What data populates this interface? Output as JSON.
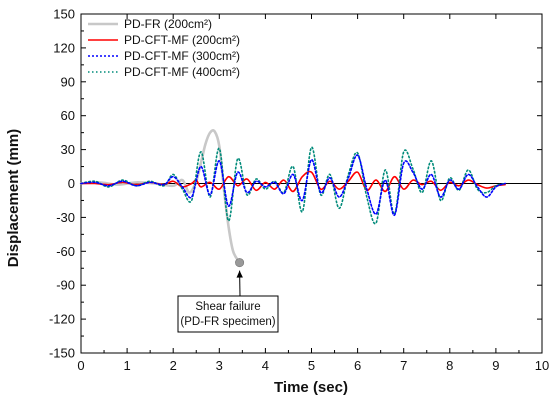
{
  "chart_data": {
    "type": "line",
    "xlabel": "Time (sec)",
    "ylabel": "Displacement (mm)",
    "xlim": [
      0,
      10
    ],
    "ylim": [
      -150,
      150
    ],
    "x_ticks": [
      0,
      1,
      2,
      3,
      4,
      5,
      6,
      7,
      8,
      9,
      10
    ],
    "y_ticks": [
      150,
      120,
      90,
      60,
      30,
      0,
      -30,
      -60,
      -90,
      -120,
      -150
    ],
    "grid": false,
    "legend_position": "top-left",
    "series": [
      {
        "name": "PD-FR (200cm²)",
        "color": "#c8c8c8",
        "style": "solid",
        "x": [
          0,
          0.4,
          0.8,
          1.2,
          1.6,
          2.0,
          2.2,
          2.35,
          2.5,
          2.6,
          2.7,
          2.8,
          2.9,
          3.0,
          3.1,
          3.2,
          3.3,
          3.44
        ],
        "y": [
          0,
          1,
          -1,
          1,
          0,
          -2,
          3,
          -8,
          2,
          18,
          35,
          45,
          46,
          33,
          -5,
          -38,
          -60,
          -70
        ]
      },
      {
        "name": "PD-CFT-MF (200cm²)",
        "color": "#ff0000",
        "style": "solid",
        "x": [
          0,
          0.3,
          0.6,
          0.9,
          1.2,
          1.5,
          1.8,
          2.0,
          2.2,
          2.4,
          2.5,
          2.6,
          2.8,
          3.0,
          3.2,
          3.4,
          3.6,
          3.8,
          4.0,
          4.2,
          4.4,
          4.6,
          4.8,
          5.0,
          5.2,
          5.4,
          5.6,
          5.8,
          6.0,
          6.2,
          6.4,
          6.6,
          6.8,
          7.0,
          7.2,
          7.4,
          7.6,
          7.8,
          8.0,
          8.2,
          8.4,
          8.6,
          8.8,
          9.0,
          9.2
        ],
        "y": [
          0,
          0,
          -1,
          1,
          -1,
          1,
          -1,
          2,
          -3,
          0,
          3,
          -3,
          1,
          -5,
          6,
          -2,
          4,
          -6,
          1,
          -5,
          3,
          -7,
          6,
          10,
          -5,
          2,
          -5,
          2,
          10,
          -6,
          3,
          -7,
          6,
          -5,
          3,
          -1,
          2,
          -6,
          1,
          -2,
          3,
          -1,
          -4,
          -2,
          -1
        ]
      },
      {
        "name": "PD-CFT-MF (300cm²)",
        "color": "#0000ff",
        "style": "dotted",
        "x": [
          0,
          0.3,
          0.6,
          0.9,
          1.2,
          1.5,
          1.8,
          2.0,
          2.2,
          2.4,
          2.6,
          2.8,
          3.0,
          3.2,
          3.4,
          3.6,
          3.8,
          4.0,
          4.2,
          4.4,
          4.6,
          4.8,
          5.0,
          5.2,
          5.4,
          5.6,
          5.8,
          6.0,
          6.2,
          6.4,
          6.6,
          6.8,
          7.0,
          7.2,
          7.4,
          7.6,
          7.8,
          8.0,
          8.2,
          8.4,
          8.6,
          8.8,
          9.0,
          9.2
        ],
        "y": [
          0,
          1,
          -2,
          2,
          -2,
          1,
          -1,
          6,
          -3,
          -12,
          15,
          -10,
          20,
          -20,
          10,
          -8,
          2,
          -3,
          1,
          -9,
          8,
          -15,
          21,
          -8,
          5,
          -12,
          5,
          25,
          -5,
          -27,
          3,
          -28,
          18,
          10,
          -5,
          8,
          -12,
          3,
          -5,
          8,
          -3,
          -12,
          -3,
          0
        ]
      },
      {
        "name": "PD-CFT-MF (400cm²)",
        "color": "#008b7a",
        "style": "dotted",
        "x": [
          0,
          0.3,
          0.6,
          0.9,
          1.2,
          1.5,
          1.8,
          2.0,
          2.2,
          2.4,
          2.6,
          2.8,
          3.0,
          3.2,
          3.4,
          3.6,
          3.8,
          4.0,
          4.2,
          4.4,
          4.6,
          4.8,
          5.0,
          5.2,
          5.4,
          5.6,
          5.8,
          6.0,
          6.2,
          6.4,
          6.6,
          6.8,
          7.0,
          7.2,
          7.4,
          7.6,
          7.8,
          8.0,
          8.2,
          8.4,
          8.6,
          8.8,
          9.0,
          9.2
        ],
        "y": [
          0,
          2,
          -3,
          3,
          -2,
          2,
          -2,
          8,
          -5,
          -15,
          28,
          -12,
          31,
          -33,
          22,
          -10,
          4,
          -5,
          2,
          -8,
          15,
          -25,
          32,
          -10,
          8,
          -22,
          8,
          27,
          -12,
          -35,
          12,
          -27,
          28,
          13,
          -8,
          20,
          -15,
          5,
          -6,
          12,
          -5,
          -8,
          -2,
          0
        ]
      }
    ],
    "annotations": [
      {
        "text_lines": [
          "Shear failure",
          "(PD-FR specimen)"
        ],
        "point": [
          3.44,
          -70
        ],
        "marker_color": "#999999"
      }
    ]
  }
}
